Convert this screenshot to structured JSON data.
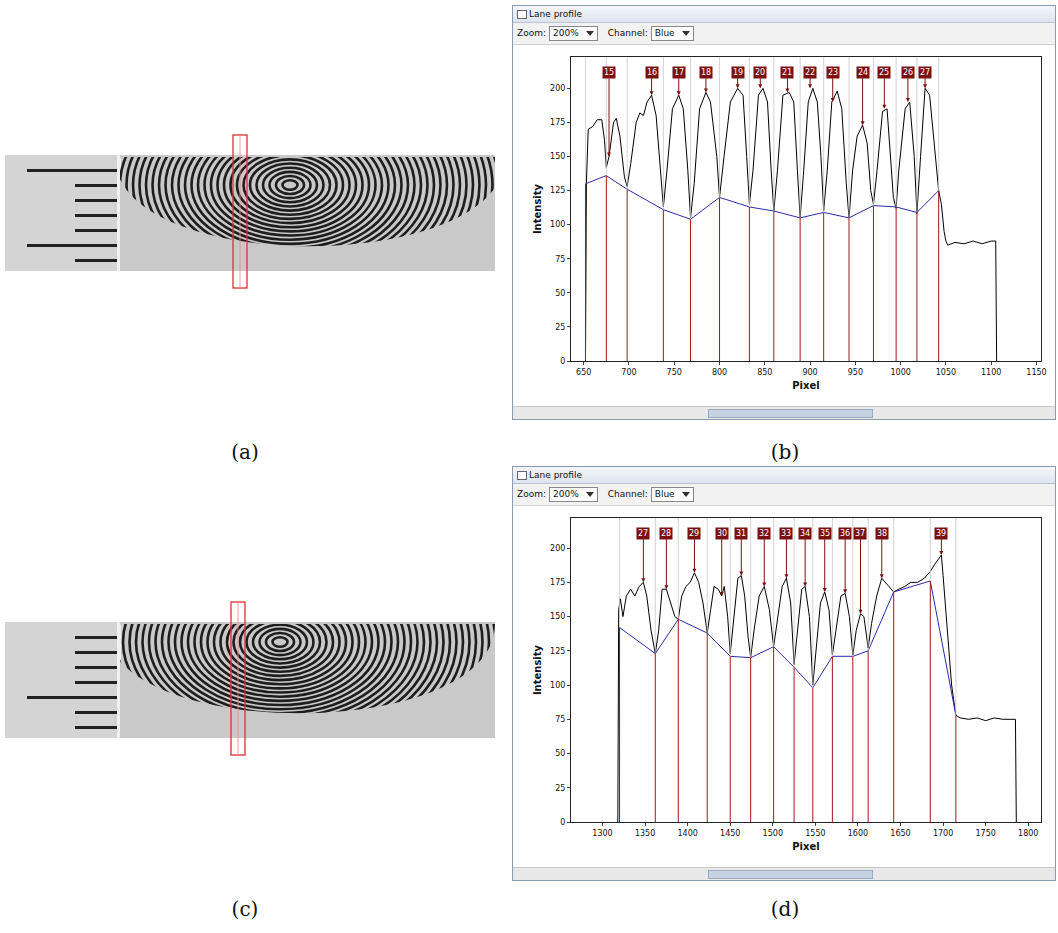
{
  "panel_labels": [
    "(a)",
    "(b)",
    "(c)",
    "(d)"
  ],
  "window": {
    "title": "Lane profile",
    "zoom_label": "Zoom:",
    "zoom": "200%",
    "channel_label": "Channel:",
    "channel": "Blue"
  },
  "chart_data": [
    {
      "type": "line",
      "x_label": "Pixel",
      "y_label": "Intensity",
      "xlim": [
        636,
        1155
      ],
      "xticks": [
        650,
        700,
        750,
        800,
        850,
        900,
        950,
        1000,
        1050,
        1100,
        1150
      ],
      "ylim": [
        0,
        223
      ],
      "yticks": [
        0,
        25,
        50,
        75,
        100,
        125,
        150,
        175,
        200
      ],
      "series": [
        {
          "color": "#000000",
          "x": [
            652,
            653,
            655,
            660,
            665,
            670,
            673,
            675,
            678,
            683,
            686,
            690,
            695,
            698,
            702,
            708,
            712,
            716,
            720,
            725,
            730,
            735,
            738,
            742,
            748,
            755,
            760,
            765,
            768,
            772,
            778,
            785,
            790,
            797,
            800,
            805,
            812,
            820,
            826,
            830,
            833,
            837,
            843,
            848,
            853,
            857,
            860,
            864,
            870,
            877,
            882,
            886,
            889,
            893,
            898,
            903,
            908,
            912,
            915,
            919,
            924,
            930,
            935,
            940,
            943,
            947,
            952,
            958,
            963,
            967,
            970,
            974,
            980,
            985,
            988,
            992,
            995,
            998,
            1005,
            1010,
            1015,
            1018,
            1022,
            1027,
            1032,
            1037,
            1042,
            1045,
            1048,
            1050,
            1052,
            1060,
            1070,
            1080,
            1090,
            1100,
            1105,
            1106
          ],
          "values": [
            0,
            130,
            170,
            172,
            177,
            177,
            162,
            142,
            150,
            175,
            178,
            165,
            135,
            128,
            145,
            175,
            182,
            180,
            190,
            195,
            180,
            140,
            113,
            140,
            185,
            195,
            185,
            140,
            105,
            130,
            185,
            197,
            190,
            150,
            120,
            150,
            190,
            200,
            195,
            150,
            115,
            140,
            195,
            200,
            190,
            140,
            110,
            140,
            195,
            197,
            190,
            140,
            105,
            140,
            190,
            200,
            190,
            150,
            110,
            140,
            190,
            198,
            185,
            130,
            105,
            140,
            165,
            173,
            160,
            125,
            115,
            140,
            183,
            185,
            160,
            120,
            112,
            140,
            185,
            190,
            150,
            108,
            150,
            200,
            195,
            160,
            125,
            115,
            95,
            88,
            85,
            87,
            86,
            88,
            86,
            88,
            88,
            0
          ]
        },
        {
          "color": "#2b2ba8",
          "x": [
            652,
            652,
            675,
            698,
            738,
            768,
            800,
            833,
            860,
            889,
            915,
            943,
            970,
            995,
            1018,
            1042
          ],
          "values": [
            0,
            130,
            136,
            126,
            111,
            104,
            120,
            113,
            110,
            105,
            109,
            105,
            114,
            113,
            109,
            125
          ]
        }
      ],
      "boundaries": [
        652,
        675,
        698,
        738,
        768,
        800,
        833,
        860,
        889,
        915,
        943,
        970,
        995,
        1018,
        1042
      ],
      "annotations": [
        {
          "text": "15",
          "x": 678,
          "y": 150
        },
        {
          "text": "16",
          "x": 725,
          "y": 195
        },
        {
          "text": "17",
          "x": 755,
          "y": 195
        },
        {
          "text": "18",
          "x": 785,
          "y": 197
        },
        {
          "text": "19",
          "x": 820,
          "y": 200
        },
        {
          "text": "20",
          "x": 845,
          "y": 200
        },
        {
          "text": "21",
          "x": 875,
          "y": 197
        },
        {
          "text": "22",
          "x": 900,
          "y": 200
        },
        {
          "text": "23",
          "x": 925,
          "y": 190
        },
        {
          "text": "24",
          "x": 958,
          "y": 173
        },
        {
          "text": "25",
          "x": 982,
          "y": 185
        },
        {
          "text": "26",
          "x": 1008,
          "y": 190
        },
        {
          "text": "27",
          "x": 1027,
          "y": 200
        }
      ]
    },
    {
      "type": "line",
      "x_label": "Pixel",
      "y_label": "Intensity",
      "xlim": [
        1263,
        1815
      ],
      "xticks": [
        1300,
        1350,
        1400,
        1450,
        1500,
        1550,
        1600,
        1650,
        1700,
        1750,
        1800
      ],
      "ylim": [
        0,
        222
      ],
      "yticks": [
        0,
        25,
        50,
        75,
        100,
        125,
        150,
        175,
        200
      ],
      "series": [
        {
          "color": "#000000",
          "x": [
            1318,
            1319,
            1321,
            1324,
            1328,
            1333,
            1338,
            1343,
            1348,
            1352,
            1357,
            1362,
            1366,
            1370,
            1375,
            1380,
            1385,
            1389,
            1393,
            1398,
            1403,
            1408,
            1413,
            1418,
            1423,
            1427,
            1431,
            1436,
            1440,
            1443,
            1447,
            1450,
            1454,
            1459,
            1463,
            1467,
            1471,
            1474,
            1478,
            1484,
            1490,
            1496,
            1501,
            1505,
            1511,
            1516,
            1521,
            1525,
            1529,
            1534,
            1538,
            1543,
            1547,
            1551,
            1556,
            1561,
            1566,
            1570,
            1574,
            1580,
            1585,
            1590,
            1594,
            1598,
            1603,
            1607,
            1612,
            1616,
            1622,
            1628,
            1635,
            1642,
            1648,
            1655,
            1662,
            1670,
            1678,
            1685,
            1690,
            1695,
            1698,
            1700,
            1705,
            1710,
            1715,
            1720,
            1730,
            1740,
            1750,
            1760,
            1770,
            1780,
            1785,
            1786
          ],
          "values": [
            0,
            155,
            163,
            150,
            165,
            170,
            165,
            172,
            175,
            165,
            140,
            123,
            140,
            170,
            170,
            160,
            150,
            148,
            165,
            172,
            175,
            182,
            175,
            160,
            138,
            155,
            172,
            170,
            165,
            172,
            150,
            123,
            150,
            178,
            180,
            165,
            135,
            120,
            140,
            165,
            172,
            155,
            128,
            145,
            172,
            178,
            160,
            115,
            140,
            170,
            172,
            150,
            100,
            125,
            160,
            168,
            155,
            122,
            140,
            165,
            167,
            150,
            122,
            140,
            152,
            150,
            127,
            145,
            165,
            178,
            173,
            168,
            170,
            172,
            175,
            175,
            178,
            183,
            188,
            192,
            195,
            180,
            140,
            100,
            78,
            76,
            75,
            76,
            74,
            76,
            75,
            75,
            75,
            0
          ]
        },
        {
          "color": "#2b2ba8",
          "x": [
            1320,
            1320,
            1362,
            1389,
            1423,
            1450,
            1474,
            1501,
            1525,
            1547,
            1570,
            1594,
            1612,
            1642,
            1685,
            1715
          ],
          "values": [
            0,
            142,
            123,
            148,
            138,
            121,
            120,
            128,
            113,
            98,
            121,
            121,
            125,
            168,
            176,
            78
          ]
        }
      ],
      "boundaries": [
        1320,
        1362,
        1389,
        1423,
        1450,
        1474,
        1501,
        1525,
        1547,
        1570,
        1594,
        1612,
        1642,
        1685,
        1715
      ],
      "annotations": [
        {
          "text": "27",
          "x": 1348,
          "y": 175
        },
        {
          "text": "28",
          "x": 1375,
          "y": 170
        },
        {
          "text": "29",
          "x": 1408,
          "y": 182
        },
        {
          "text": "30",
          "x": 1440,
          "y": 165
        },
        {
          "text": "31",
          "x": 1463,
          "y": 180
        },
        {
          "text": "32",
          "x": 1490,
          "y": 172
        },
        {
          "text": "33",
          "x": 1516,
          "y": 178
        },
        {
          "text": "34",
          "x": 1538,
          "y": 172
        },
        {
          "text": "35",
          "x": 1561,
          "y": 168
        },
        {
          "text": "36",
          "x": 1585,
          "y": 167
        },
        {
          "text": "37",
          "x": 1603,
          "y": 152
        },
        {
          "text": "38",
          "x": 1628,
          "y": 178
        },
        {
          "text": "39",
          "x": 1698,
          "y": 195
        }
      ]
    }
  ]
}
